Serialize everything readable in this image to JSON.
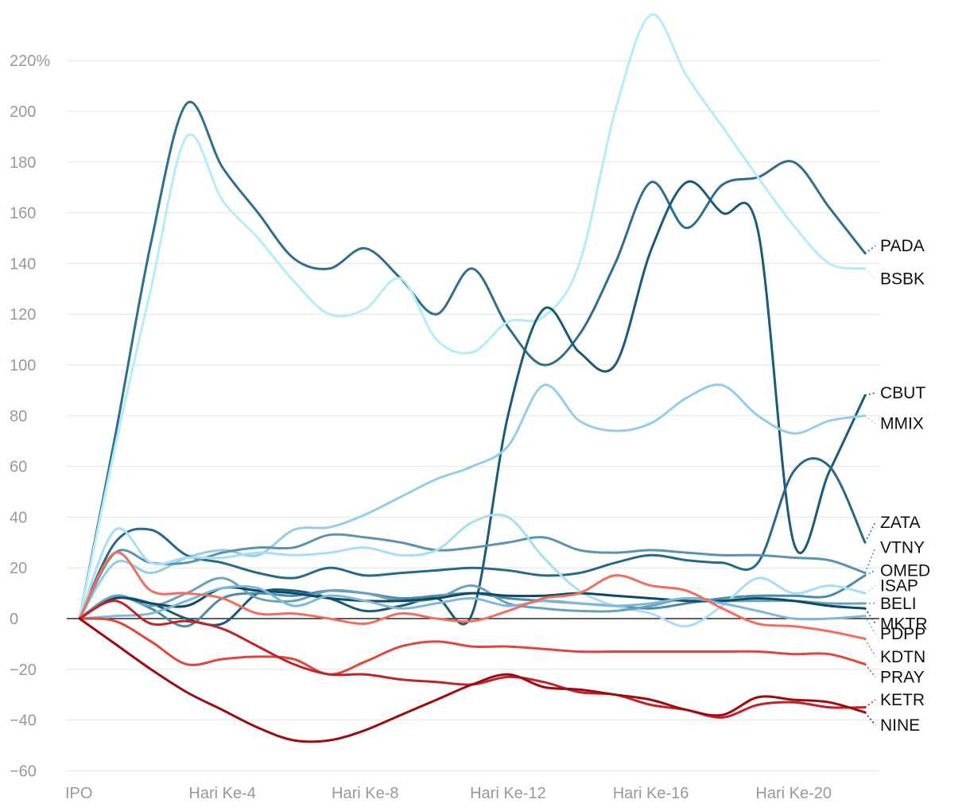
{
  "chart_data": {
    "type": "line",
    "title": "",
    "xlabel": "",
    "ylabel": "",
    "y_unit_suffix": "%",
    "ylim": [
      -60,
      230
    ],
    "yticks": [
      -60,
      -40,
      -20,
      0,
      20,
      40,
      60,
      80,
      100,
      120,
      140,
      160,
      180,
      200,
      220
    ],
    "ytick_labels": [
      "−60",
      "−40",
      "−20",
      "0",
      "20",
      "40",
      "60",
      "80",
      "100",
      "120",
      "140",
      "160",
      "180",
      "200",
      "220%"
    ],
    "x": [
      0,
      1,
      2,
      3,
      4,
      5,
      6,
      7,
      8,
      9,
      10,
      11,
      12,
      13,
      14,
      15,
      16,
      17,
      18,
      19,
      20,
      21,
      22
    ],
    "xticks": [
      0,
      4,
      8,
      12,
      16,
      20
    ],
    "xtick_labels": [
      "IPO",
      "Hari Ke-4",
      "Hari Ke-8",
      "Hari Ke-12",
      "Hari Ke-16",
      "Hari Ke-20"
    ],
    "grid": true,
    "legend": "direct-labels-right",
    "series": [
      {
        "name": "PADA",
        "color": "#2e6f8e",
        "label_y": 147,
        "values": [
          0,
          72,
          148,
          203,
          178,
          160,
          142,
          138,
          146,
          134,
          120,
          138,
          115,
          100,
          112,
          140,
          172,
          154,
          171,
          174,
          180,
          162,
          144
        ]
      },
      {
        "name": "BSBK",
        "color": "#b3ecfb",
        "label_y": 134,
        "values": [
          0,
          68,
          130,
          190,
          165,
          150,
          133,
          120,
          122,
          134,
          110,
          105,
          117,
          119,
          140,
          200,
          238,
          214,
          194,
          174,
          155,
          140,
          138
        ]
      },
      {
        "name": "CBUT",
        "color": "#1b5b78",
        "label_y": 89,
        "values": [
          0,
          8,
          6,
          0,
          -2,
          10,
          11,
          8,
          3,
          5,
          8,
          2,
          80,
          122,
          105,
          100,
          145,
          172,
          160,
          153,
          30,
          58,
          88
        ]
      },
      {
        "name": "MMIX",
        "color": "#93cde8",
        "label_y": 77,
        "values": [
          0,
          22,
          18,
          24,
          27,
          25,
          35,
          36,
          41,
          48,
          55,
          60,
          68,
          92,
          78,
          74,
          77,
          87,
          92,
          80,
          73,
          78,
          80
        ]
      },
      {
        "name": "ZATA",
        "color": "#2a6986",
        "label_y": 38,
        "values": [
          0,
          30,
          35,
          25,
          22,
          18,
          16,
          20,
          17,
          18,
          19,
          20,
          19,
          17,
          18,
          22,
          25,
          23,
          22,
          22,
          58,
          60,
          30
        ]
      },
      {
        "name": "VTNY",
        "color": "#5a93b0",
        "label_y": 28,
        "values": [
          0,
          26,
          22,
          22,
          26,
          28,
          28,
          33,
          32,
          30,
          27,
          28,
          30,
          32,
          27,
          26,
          27,
          26,
          25,
          25,
          24,
          23,
          18
        ]
      },
      {
        "name": "OMED",
        "color": "#4c8aa8",
        "label_y": 19,
        "values": [
          0,
          9,
          4,
          -3,
          8,
          10,
          9,
          11,
          10,
          8,
          9,
          10,
          8,
          7,
          6,
          5,
          4,
          6,
          8,
          9,
          9,
          9,
          17
        ]
      },
      {
        "name": "ISAP",
        "color": "#a6def5",
        "label_y": 13,
        "values": [
          0,
          35,
          22,
          24,
          24,
          26,
          25,
          26,
          28,
          25,
          27,
          38,
          40,
          24,
          11,
          5,
          2,
          -3,
          5,
          16,
          10,
          13,
          10
        ]
      },
      {
        "name": "BELI",
        "color": "#6aa2bd",
        "label_y": 6,
        "values": [
          0,
          9,
          5,
          10,
          16,
          8,
          7,
          11,
          10,
          7,
          8,
          13,
          6,
          4,
          3,
          3,
          5,
          8,
          7,
          7,
          7,
          6,
          6
        ]
      },
      {
        "name": "MKTR",
        "color": "#0d4a66",
        "label_y": -2,
        "values": [
          0,
          8,
          6,
          5,
          12,
          11,
          10,
          8,
          7,
          7,
          8,
          10,
          9,
          9,
          10,
          9,
          8,
          7,
          7,
          8,
          7,
          5,
          4
        ]
      },
      {
        "name": "PDPP",
        "color": "#7fb8d6",
        "label_y": -6,
        "values": [
          0,
          1,
          2,
          7,
          12,
          12,
          5,
          9,
          7,
          4,
          6,
          8,
          5,
          7,
          6,
          5,
          6,
          8,
          6,
          3,
          0,
          0,
          1
        ]
      },
      {
        "name": "KDTN",
        "color": "#f26e5a",
        "label_y": -15,
        "values": [
          0,
          26,
          11,
          10,
          8,
          2,
          2,
          0,
          -2,
          2,
          0,
          -1,
          3,
          8,
          10,
          17,
          13,
          11,
          4,
          -2,
          -3,
          -5,
          -8
        ]
      },
      {
        "name": "PRAY",
        "color": "#e0463a",
        "label_y": -23,
        "values": [
          0,
          -1,
          -9,
          -18,
          -16,
          -15,
          -16,
          -22,
          -17,
          -11,
          -9,
          -11,
          -11,
          -12,
          -13,
          -13,
          -13,
          -13,
          -13,
          -13,
          -14,
          -14,
          -18
        ]
      },
      {
        "name": "KETR",
        "color": "#c0232b",
        "label_y": -32,
        "values": [
          0,
          7,
          -2,
          -1,
          -4,
          -11,
          -18,
          -22,
          -22,
          -24,
          -25,
          -26,
          -23,
          -25,
          -29,
          -30,
          -34,
          -36,
          -39,
          -34,
          -33,
          -35,
          -35
        ]
      },
      {
        "name": "NINE",
        "color": "#9e0a0f",
        "label_y": -42,
        "values": [
          0,
          -10,
          -20,
          -29,
          -36,
          -43,
          -48,
          -48,
          -44,
          -38,
          -32,
          -26,
          -22,
          -27,
          -28,
          -30,
          -32,
          -36,
          -38,
          -31,
          -32,
          -33,
          -37
        ]
      }
    ]
  }
}
